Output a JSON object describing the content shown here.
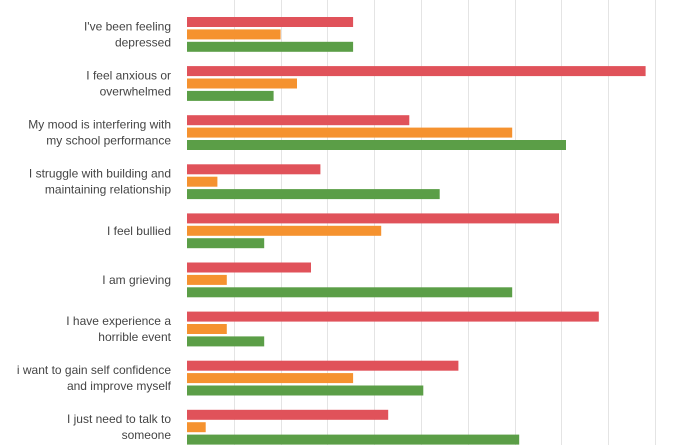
{
  "chart_data": {
    "type": "bar",
    "orientation": "horizontal",
    "categories": [
      [
        "I've been feeling",
        "depressed"
      ],
      [
        "I feel anxious or",
        "overwhelmed"
      ],
      [
        "My mood is interfering with",
        "my school performance"
      ],
      [
        "I struggle with building and",
        "maintaining relationship"
      ],
      [
        "I feel bullied"
      ],
      [
        "I am grieving"
      ],
      [
        "I have experience a",
        "horrible event"
      ],
      [
        "i want to gain self confidence",
        "and improve myself"
      ],
      [
        "I just need to talk to",
        "someone"
      ]
    ],
    "series": [
      {
        "color": "#e0525a",
        "values": [
          3.55,
          9.8,
          4.75,
          2.85,
          7.95,
          2.65,
          8.8,
          5.8,
          4.3
        ]
      },
      {
        "color": "#f5922f",
        "values": [
          2.0,
          2.35,
          6.95,
          0.65,
          4.15,
          0.85,
          0.85,
          3.55,
          0.4
        ]
      },
      {
        "color": "#5b9e47",
        "values": [
          3.55,
          1.85,
          8.1,
          5.4,
          1.65,
          6.95,
          1.65,
          5.05,
          7.1
        ]
      }
    ],
    "xlim": [
      0,
      10.6
    ],
    "grid": true,
    "legend": "none"
  }
}
